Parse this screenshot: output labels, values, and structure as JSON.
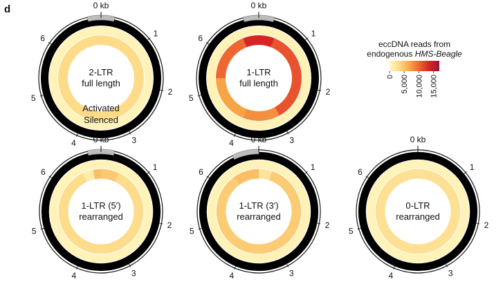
{
  "panel_letter": "d",
  "position_labels": [
    "0 kb",
    "1",
    "2",
    "3",
    "4",
    "5",
    "6"
  ],
  "legend": {
    "title_line1": "eccDNA reads from",
    "title_prefix": "endogenous",
    "title_italic": "HMS-Beagle",
    "tick_labels": [
      "0",
      "5,000",
      "10,000",
      "15,000"
    ],
    "tick_values": [
      0,
      5000,
      10000,
      15000
    ],
    "max": 17000,
    "colors": [
      "#fff8c4",
      "#fdd985",
      "#f8a847",
      "#ee6230",
      "#d42424",
      "#9c1438"
    ]
  },
  "track_labels": {
    "activated": "Activated",
    "silenced": "Silenced"
  },
  "circles": [
    {
      "line1": "2-LTR",
      "line2": "full length",
      "activated": [
        [
          0,
          1,
          3200
        ]
      ],
      "silenced": [
        [
          0,
          1,
          600
        ]
      ],
      "ltr_marks": [
        [
          -0.035,
          0.035
        ]
      ]
    },
    {
      "line1": "1-LTR",
      "line2": "full length",
      "activated": [
        [
          0,
          0.06,
          13500
        ],
        [
          0.06,
          0.42,
          11000
        ],
        [
          0.42,
          0.56,
          8000
        ],
        [
          0.56,
          0.75,
          7000
        ],
        [
          0.75,
          0.94,
          10000
        ],
        [
          0.94,
          1,
          13500
        ]
      ],
      "silenced": [
        [
          0,
          1,
          700
        ]
      ],
      "ltr_marks": [
        [
          -0.04,
          0.04
        ]
      ]
    },
    {
      "line1": "1-LTR (5′)",
      "line2": "rearranged",
      "activated": [
        [
          0,
          0.07,
          4500
        ],
        [
          0.07,
          0.93,
          3100
        ],
        [
          0.93,
          0.97,
          1300
        ],
        [
          0.97,
          1,
          5200
        ]
      ],
      "silenced": [
        [
          0,
          1,
          600
        ]
      ],
      "ltr_marks": [
        [
          -0.035,
          0.035
        ]
      ]
    },
    {
      "line1": "1-LTR (3′)",
      "line2": "rearranged",
      "activated": [
        [
          0,
          0.05,
          2200
        ],
        [
          0.05,
          0.9,
          4300
        ],
        [
          0.9,
          1,
          5200
        ]
      ],
      "silenced": [
        [
          0,
          1,
          650
        ]
      ],
      "ltr_marks": [
        [
          -0.07,
          0.0
        ]
      ]
    },
    {
      "line1": "0-LTR",
      "line2": "rearranged",
      "activated": [
        [
          0,
          1,
          2600
        ]
      ],
      "silenced": [
        [
          0,
          1,
          600
        ]
      ],
      "ltr_marks": []
    }
  ]
}
